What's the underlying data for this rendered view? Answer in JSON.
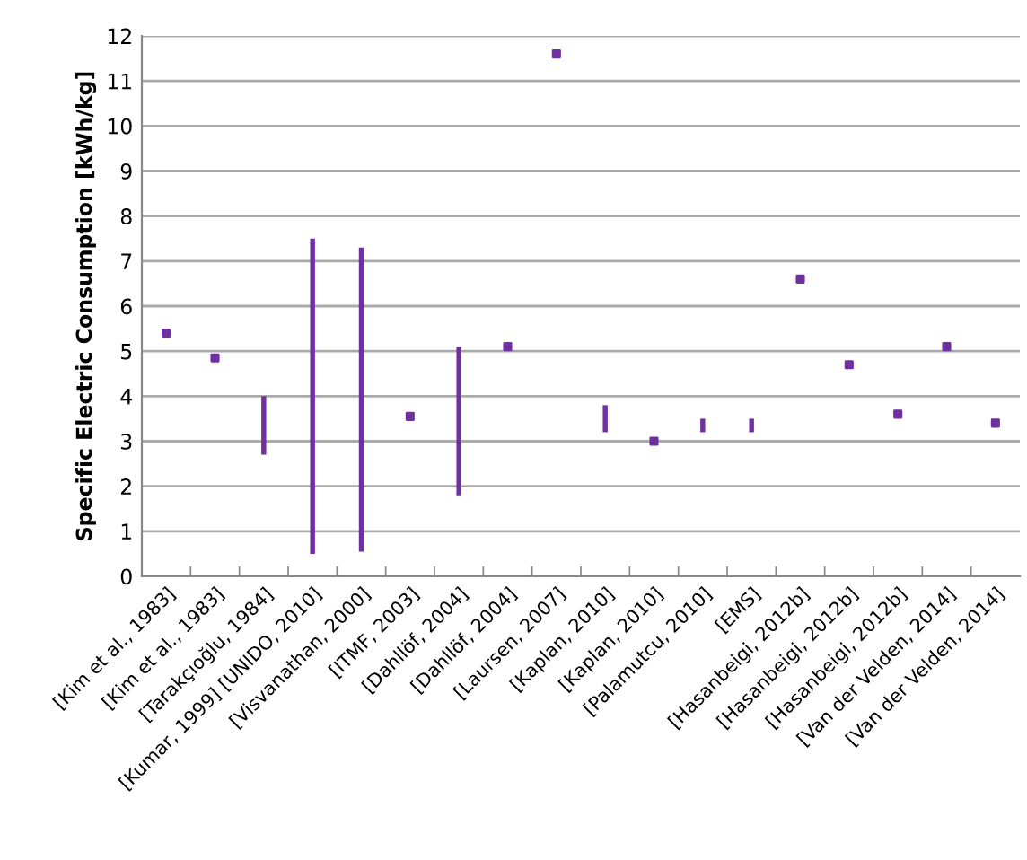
{
  "chart_data": {
    "type": "bar",
    "ylabel": "Specific Electric Consumption [kWh/kg]",
    "categories": [
      "[Kim et al., 1983]",
      "[Kim et al., 1983]",
      "[Tarakçıoğlu, 1984]",
      "[Kumar, 1999] [UNIDO, 2010]",
      "[Visvanathan, 2000]",
      "[ITMF, 2003]",
      "[Dahllöf, 2004]",
      "[Dahllöf, 2004]",
      "[Laursen, 2007]",
      "[Kaplan, 2010]",
      "[Kaplan, 2010]",
      "[Palamutcu, 2010]",
      "[EMS]",
      "[Hasanbeigi, 2012b]",
      "[Hasanbeigi, 2012b]",
      "[Hasanbeigi, 2012b]",
      "[Van der Velden, 2014]",
      "[Van der Velden, 2014]"
    ],
    "series": [
      {
        "color": "#7030a0",
        "values": [
          null,
          null,
          1.3,
          7.0,
          6.75,
          null,
          3.3,
          null,
          null,
          0.6,
          null,
          0.3,
          0.3,
          null,
          null,
          null,
          null,
          null
        ],
        "base": [
          null,
          null,
          2.7,
          0.5,
          0.55,
          null,
          1.8,
          null,
          null,
          3.2,
          null,
          3.2,
          3.2,
          null,
          null,
          null,
          null,
          null
        ]
      },
      {
        "type": "scatter",
        "color": "#7030a0",
        "marker": "square",
        "values": [
          5.4,
          4.85,
          null,
          null,
          null,
          3.55,
          null,
          5.1,
          11.6,
          null,
          3.0,
          null,
          null,
          6.6,
          4.7,
          3.6,
          5.1,
          3.4
        ]
      }
    ],
    "ylim": [
      0,
      12
    ],
    "yticks": [
      0,
      1,
      2,
      3,
      4,
      5,
      6,
      7,
      8,
      9,
      10,
      11,
      12
    ],
    "grid": "y",
    "legend": false
  }
}
